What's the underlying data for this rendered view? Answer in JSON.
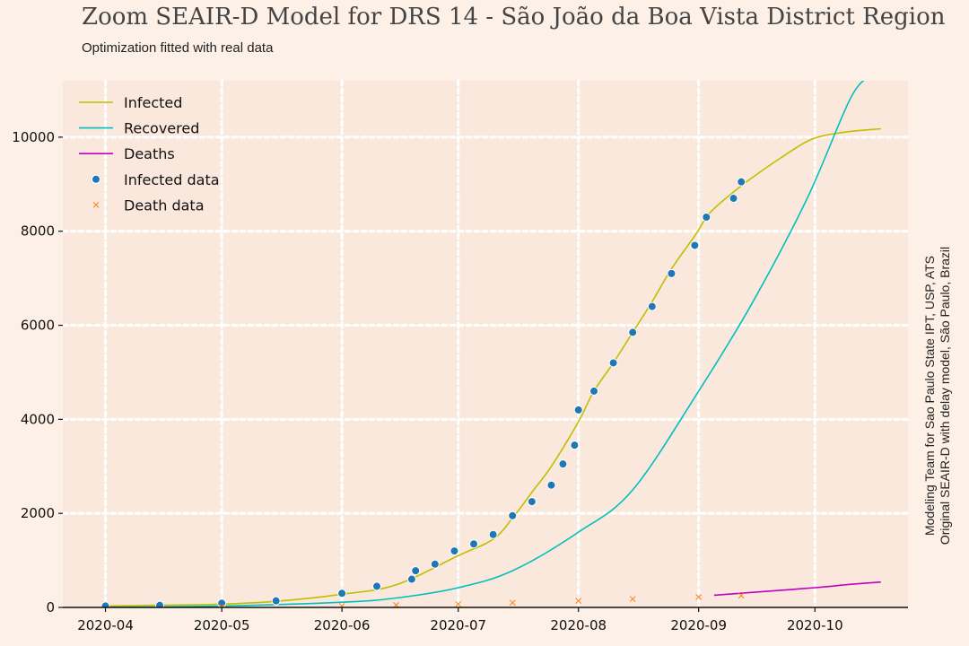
{
  "header": {
    "title": "Zoom SEAIR-D Model for DRS 14 - São João da Boa Vista District Region",
    "subtitle": "Optimization fitted with real data"
  },
  "side_note": {
    "line1": "Modeling Team for Sao Paulo State IPT, USP, ATS",
    "line2": "Original SEAIR-D with delay model, São Paulo, Brazil"
  },
  "chart_data": {
    "type": "line",
    "title": "Zoom SEAIR-D Model for DRS 14 - São João da Boa Vista District Region",
    "subtitle": "Optimization fitted with real data",
    "xlabel": "",
    "ylabel": "",
    "x_axis": {
      "type": "date",
      "range": [
        "2020-03-21",
        "2020-10-25"
      ],
      "ticks": [
        "2020-04",
        "2020-05",
        "2020-06",
        "2020-07",
        "2020-08",
        "2020-09",
        "2020-10"
      ]
    },
    "y_axis": {
      "range": [
        0,
        11200
      ],
      "ticks": [
        0,
        2000,
        4000,
        6000,
        8000,
        10000
      ]
    },
    "grid": true,
    "legend": "upper-left",
    "colors": {
      "infected": "#bfbf00",
      "recovered": "#00bfbf",
      "deaths": "#bf00bf",
      "infected_data": "#1f77b4",
      "death_data": "#ff7f0e",
      "plot_background": "#fae8dc",
      "grid": "#ffffff"
    },
    "series": [
      {
        "name": "Infected",
        "kind": "line",
        "color": "#bfbf00",
        "points": [
          [
            "2020-03-31",
            30
          ],
          [
            "2020-04-15",
            45
          ],
          [
            "2020-05-01",
            70
          ],
          [
            "2020-05-15",
            130
          ],
          [
            "2020-06-01",
            280
          ],
          [
            "2020-06-15",
            480
          ],
          [
            "2020-07-01",
            1100
          ],
          [
            "2020-07-10",
            1450
          ],
          [
            "2020-07-15",
            1900
          ],
          [
            "2020-07-20",
            2450
          ],
          [
            "2020-07-25",
            3000
          ],
          [
            "2020-08-01",
            3950
          ],
          [
            "2020-08-05",
            4600
          ],
          [
            "2020-08-10",
            5200
          ],
          [
            "2020-08-15",
            5850
          ],
          [
            "2020-08-20",
            6500
          ],
          [
            "2020-08-25",
            7200
          ],
          [
            "2020-08-31",
            7900
          ],
          [
            "2020-09-04",
            8400
          ],
          [
            "2020-09-11",
            8900
          ],
          [
            "2020-09-15",
            9150
          ],
          [
            "2020-09-22",
            9550
          ],
          [
            "2020-09-30",
            9950
          ],
          [
            "2020-10-08",
            10100
          ],
          [
            "2020-10-18",
            10180
          ]
        ]
      },
      {
        "name": "Recovered",
        "kind": "line",
        "color": "#00bfbf",
        "points": [
          [
            "2020-03-31",
            0
          ],
          [
            "2020-05-01",
            30
          ],
          [
            "2020-06-01",
            110
          ],
          [
            "2020-06-15",
            200
          ],
          [
            "2020-07-01",
            420
          ],
          [
            "2020-07-15",
            780
          ],
          [
            "2020-08-01",
            1600
          ],
          [
            "2020-08-15",
            2500
          ],
          [
            "2020-09-01",
            4600
          ],
          [
            "2020-09-15",
            6500
          ],
          [
            "2020-09-29",
            8700
          ],
          [
            "2020-10-10",
            10800
          ],
          [
            "2020-10-15",
            11300
          ]
        ]
      },
      {
        "name": "Deaths",
        "kind": "line",
        "color": "#bf00bf",
        "points": [
          [
            "2020-09-05",
            260
          ],
          [
            "2020-09-15",
            320
          ],
          [
            "2020-10-01",
            420
          ],
          [
            "2020-10-10",
            490
          ],
          [
            "2020-10-18",
            540
          ]
        ]
      },
      {
        "name": "Infected data",
        "kind": "scatter",
        "marker": "circle",
        "color": "#1f77b4",
        "points": [
          [
            "2020-04-01",
            30
          ],
          [
            "2020-04-15",
            45
          ],
          [
            "2020-05-01",
            90
          ],
          [
            "2020-05-15",
            140
          ],
          [
            "2020-06-01",
            300
          ],
          [
            "2020-06-10",
            450
          ],
          [
            "2020-06-19",
            600
          ],
          [
            "2020-06-20",
            780
          ],
          [
            "2020-06-25",
            920
          ],
          [
            "2020-06-30",
            1200
          ],
          [
            "2020-07-05",
            1350
          ],
          [
            "2020-07-10",
            1550
          ],
          [
            "2020-07-15",
            1950
          ],
          [
            "2020-07-20",
            2250
          ],
          [
            "2020-07-25",
            2600
          ],
          [
            "2020-07-28",
            3050
          ],
          [
            "2020-07-31",
            3450
          ],
          [
            "2020-08-01",
            4200
          ],
          [
            "2020-08-05",
            4600
          ],
          [
            "2020-08-10",
            5200
          ],
          [
            "2020-08-15",
            5850
          ],
          [
            "2020-08-20",
            6400
          ],
          [
            "2020-08-25",
            7100
          ],
          [
            "2020-08-31",
            7700
          ],
          [
            "2020-09-03",
            8300
          ],
          [
            "2020-09-10",
            8700
          ],
          [
            "2020-09-12",
            9050
          ]
        ]
      },
      {
        "name": "Death data",
        "kind": "scatter",
        "marker": "x",
        "color": "#ff7f0e",
        "points": [
          [
            "2020-05-01",
            10
          ],
          [
            "2020-06-01",
            30
          ],
          [
            "2020-06-15",
            50
          ],
          [
            "2020-07-01",
            70
          ],
          [
            "2020-07-15",
            100
          ],
          [
            "2020-08-01",
            140
          ],
          [
            "2020-08-15",
            180
          ],
          [
            "2020-09-01",
            220
          ],
          [
            "2020-09-12",
            250
          ]
        ]
      }
    ]
  }
}
